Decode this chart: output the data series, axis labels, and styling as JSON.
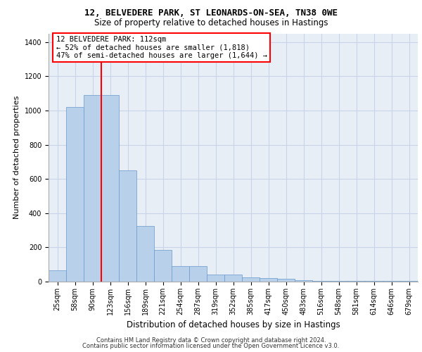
{
  "title_line1": "12, BELVEDERE PARK, ST LEONARDS-ON-SEA, TN38 0WE",
  "title_line2": "Size of property relative to detached houses in Hastings",
  "xlabel": "Distribution of detached houses by size in Hastings",
  "ylabel": "Number of detached properties",
  "footer_line1": "Contains HM Land Registry data © Crown copyright and database right 2024.",
  "footer_line2": "Contains public sector information licensed under the Open Government Licence v3.0.",
  "bin_labels": [
    "25sqm",
    "58sqm",
    "90sqm",
    "123sqm",
    "156sqm",
    "189sqm",
    "221sqm",
    "254sqm",
    "287sqm",
    "319sqm",
    "352sqm",
    "385sqm",
    "417sqm",
    "450sqm",
    "483sqm",
    "516sqm",
    "548sqm",
    "581sqm",
    "614sqm",
    "646sqm",
    "679sqm"
  ],
  "bar_values": [
    65,
    1020,
    1090,
    1090,
    650,
    325,
    185,
    90,
    90,
    40,
    40,
    25,
    20,
    15,
    10,
    5,
    5,
    5,
    5,
    5,
    5
  ],
  "bar_color": "#b8d0ea",
  "bar_edge_color": "#6699cc",
  "annotation_box_text": "12 BELVEDERE PARK: 112sqm\n← 52% of detached houses are smaller (1,818)\n47% of semi-detached houses are larger (1,644) →",
  "redline_x": 2.5,
  "ylim": [
    0,
    1450
  ],
  "yticks": [
    0,
    200,
    400,
    600,
    800,
    1000,
    1200,
    1400
  ],
  "grid_color": "#c8d4e8",
  "background_color": "#e8eef6",
  "title1_fontsize": 9,
  "title2_fontsize": 8.5,
  "ylabel_fontsize": 8,
  "xlabel_fontsize": 8.5,
  "annotation_fontsize": 7.5,
  "tick_fontsize": 7,
  "footer_fontsize": 6
}
